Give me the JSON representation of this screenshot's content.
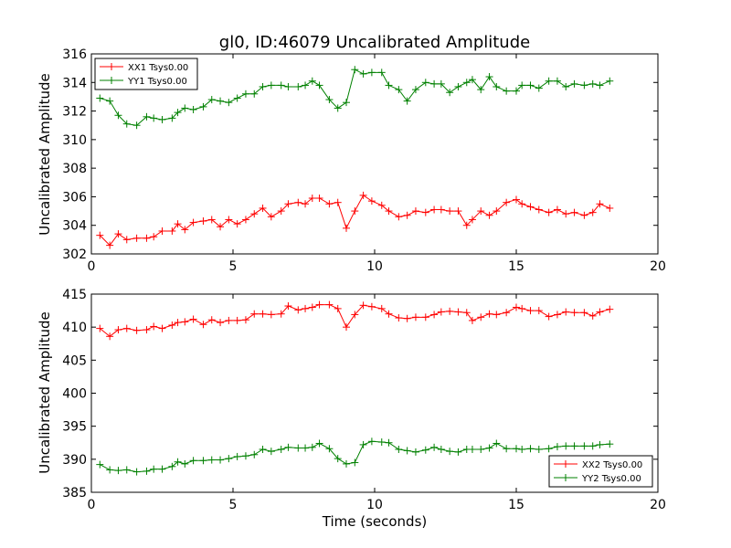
{
  "figure": {
    "title": "gl0, ID:46079 Uncalibrated Amplitude"
  },
  "chart_data": [
    {
      "type": "line",
      "title": "gl0, ID:46079 Uncalibrated Amplitude",
      "xlabel": "",
      "ylabel": "Uncalibrated Amplitude",
      "xlim": [
        0,
        20
      ],
      "ylim": [
        302,
        316
      ],
      "xticks": [
        "0",
        "5",
        "10",
        "15",
        "20"
      ],
      "yticks": [
        "302",
        "304",
        "306",
        "308",
        "310",
        "312",
        "314",
        "316"
      ],
      "legend_position": "top-left",
      "x": [
        0.3,
        0.65,
        0.95,
        1.25,
        1.6,
        1.95,
        2.2,
        2.5,
        2.85,
        3.05,
        3.3,
        3.6,
        3.95,
        4.25,
        4.55,
        4.85,
        5.15,
        5.45,
        5.75,
        6.05,
        6.35,
        6.7,
        6.95,
        7.3,
        7.55,
        7.8,
        8.05,
        8.4,
        8.7,
        9.0,
        9.3,
        9.6,
        9.9,
        10.25,
        10.5,
        10.85,
        11.15,
        11.45,
        11.8,
        12.1,
        12.35,
        12.65,
        12.95,
        13.25,
        13.45,
        13.75,
        14.05,
        14.3,
        14.65,
        15.0,
        15.2,
        15.5,
        15.8,
        16.15,
        16.45,
        16.75,
        17.05,
        17.4,
        17.7,
        17.95,
        18.3
      ],
      "series": [
        {
          "name": "XX1 Tsys0.00",
          "color": "#ff0000",
          "values": [
            303.3,
            302.6,
            303.4,
            303.0,
            303.1,
            303.1,
            303.2,
            303.6,
            303.6,
            304.1,
            303.7,
            304.2,
            304.3,
            304.4,
            303.9,
            304.4,
            304.1,
            304.4,
            304.8,
            305.2,
            304.6,
            305.0,
            305.5,
            305.6,
            305.5,
            305.9,
            305.9,
            305.5,
            305.6,
            303.8,
            305.0,
            306.1,
            305.7,
            305.4,
            305.0,
            304.6,
            304.7,
            305.0,
            304.9,
            305.1,
            305.1,
            305.0,
            305.0,
            304.0,
            304.4,
            305.0,
            304.7,
            305.0,
            305.6,
            305.8,
            305.5,
            305.3,
            305.1,
            304.9,
            305.1,
            304.8,
            304.9,
            304.7,
            304.9,
            305.5,
            305.2
          ]
        },
        {
          "name": "YY1 Tsys0.00",
          "color": "#008000",
          "values": [
            312.9,
            312.7,
            311.7,
            311.1,
            311.0,
            311.6,
            311.5,
            311.4,
            311.5,
            311.9,
            312.2,
            312.1,
            312.3,
            312.8,
            312.7,
            312.6,
            312.9,
            313.2,
            313.2,
            313.7,
            313.8,
            313.8,
            313.7,
            313.7,
            313.8,
            314.1,
            313.8,
            312.8,
            312.2,
            312.6,
            314.9,
            314.6,
            314.7,
            314.7,
            313.8,
            313.5,
            312.7,
            313.5,
            314.0,
            313.9,
            313.9,
            313.3,
            313.7,
            314.0,
            314.2,
            313.5,
            314.4,
            313.7,
            313.4,
            313.4,
            313.8,
            313.8,
            313.6,
            314.1,
            314.1,
            313.7,
            313.9,
            313.8,
            313.9,
            313.8,
            314.1
          ]
        }
      ]
    },
    {
      "type": "line",
      "title": "",
      "xlabel": "Time (seconds)",
      "ylabel": "Uncalibrated Amplitude",
      "xlim": [
        0,
        20
      ],
      "ylim": [
        385,
        415
      ],
      "xticks": [
        "0",
        "5",
        "10",
        "15",
        "20"
      ],
      "yticks": [
        "385",
        "390",
        "395",
        "400",
        "405",
        "410",
        "415"
      ],
      "legend_position": "bottom-right",
      "x": [
        0.3,
        0.65,
        0.95,
        1.25,
        1.6,
        1.95,
        2.2,
        2.5,
        2.85,
        3.05,
        3.3,
        3.6,
        3.95,
        4.25,
        4.55,
        4.85,
        5.15,
        5.45,
        5.75,
        6.05,
        6.35,
        6.7,
        6.95,
        7.3,
        7.55,
        7.8,
        8.05,
        8.4,
        8.7,
        9.0,
        9.3,
        9.6,
        9.9,
        10.25,
        10.5,
        10.85,
        11.15,
        11.45,
        11.8,
        12.1,
        12.35,
        12.65,
        12.95,
        13.25,
        13.45,
        13.75,
        14.05,
        14.3,
        14.65,
        15.0,
        15.2,
        15.5,
        15.8,
        16.15,
        16.45,
        16.75,
        17.05,
        17.4,
        17.7,
        17.95,
        18.3
      ],
      "series": [
        {
          "name": "XX2 Tsys0.00",
          "color": "#ff0000",
          "values": [
            409.8,
            408.6,
            409.6,
            409.8,
            409.5,
            409.6,
            410.1,
            409.8,
            410.3,
            410.7,
            410.8,
            411.2,
            410.4,
            411.1,
            410.7,
            411.0,
            411.0,
            411.1,
            412.0,
            412.0,
            411.9,
            412.0,
            413.2,
            412.6,
            412.8,
            413.0,
            413.4,
            413.4,
            412.8,
            410.0,
            411.9,
            413.3,
            413.1,
            412.8,
            412.0,
            411.4,
            411.3,
            411.5,
            411.5,
            411.9,
            412.3,
            412.4,
            412.3,
            412.2,
            411.0,
            411.5,
            412.0,
            411.9,
            412.2,
            413.0,
            412.8,
            412.5,
            412.5,
            411.6,
            411.9,
            412.3,
            412.2,
            412.2,
            411.7,
            412.3,
            412.7
          ]
        },
        {
          "name": "YY2 Tsys0.00",
          "color": "#008000",
          "values": [
            389.2,
            388.4,
            388.3,
            388.4,
            388.1,
            388.2,
            388.5,
            388.5,
            388.9,
            389.6,
            389.3,
            389.8,
            389.8,
            389.9,
            389.9,
            390.1,
            390.4,
            390.5,
            390.7,
            391.5,
            391.2,
            391.5,
            391.8,
            391.7,
            391.7,
            391.8,
            392.4,
            391.6,
            390.1,
            389.3,
            389.5,
            392.2,
            392.7,
            392.6,
            392.5,
            391.5,
            391.3,
            391.1,
            391.4,
            391.8,
            391.5,
            391.2,
            391.1,
            391.5,
            391.5,
            391.5,
            391.7,
            392.4,
            391.6,
            391.6,
            391.5,
            391.6,
            391.5,
            391.6,
            391.9,
            392.0,
            392.0,
            392.0,
            392.0,
            392.2,
            392.3
          ]
        }
      ]
    }
  ]
}
